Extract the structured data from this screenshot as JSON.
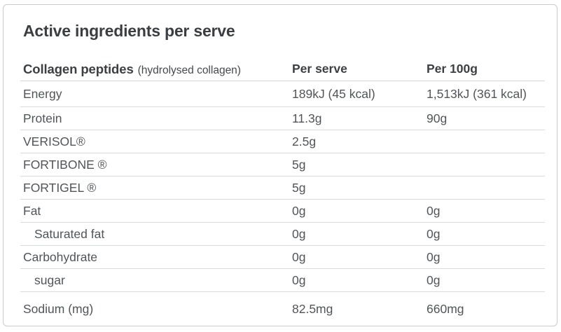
{
  "card": {
    "title": "Active ingredients per serve"
  },
  "table": {
    "header": {
      "name": "Collagen peptides",
      "name_note": "(hydrolysed collagen)",
      "col_per_serve": "Per serve",
      "col_per_100g": "Per 100g"
    },
    "rows": [
      {
        "label": "Energy",
        "per_serve": "189kJ (45 kcal)",
        "per_100g": "1,513kJ (361 kcal)",
        "indent": false
      },
      {
        "label": "Protein",
        "per_serve": "11.3g",
        "per_100g": "90g",
        "indent": false
      },
      {
        "label": "VERISOL®",
        "per_serve": "2.5g",
        "per_100g": "",
        "indent": false
      },
      {
        "label": "FORTIBONE ®",
        "per_serve": "5g",
        "per_100g": "",
        "indent": false
      },
      {
        "label": "FORTIGEL ®",
        "per_serve": "5g",
        "per_100g": "",
        "indent": false
      },
      {
        "label": "Fat",
        "per_serve": "0g",
        "per_100g": "0g",
        "indent": false
      },
      {
        "label": "Saturated fat",
        "per_serve": "0g",
        "per_100g": "0g",
        "indent": true
      },
      {
        "label": "Carbohydrate",
        "per_serve": "0g",
        "per_100g": "0g",
        "indent": false
      },
      {
        "label": "sugar",
        "per_serve": "0g",
        "per_100g": "0g",
        "indent": true
      },
      {
        "label": "Sodium (mg)",
        "per_serve": "82.5mg",
        "per_100g": "660mg",
        "indent": false
      }
    ]
  },
  "colors": {
    "title_text": "#3b3e40",
    "body_text": "#515559",
    "separator": "#d8dadb",
    "card_border": "#c9cccd",
    "background": "#ffffff"
  }
}
